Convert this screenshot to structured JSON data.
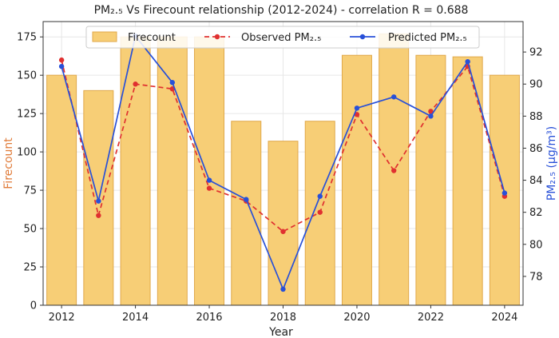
{
  "chart_data": {
    "type": "bar+line",
    "title": "PM₂.₅ Vs Firecount relationship (2012-2024) - correlation R = 0.688",
    "xlabel": "Year",
    "ylabel_left": "Firecount",
    "ylabel_right": "PM₂.₅ (μg/m³)",
    "categories": [
      2012,
      2013,
      2014,
      2015,
      2016,
      2017,
      2018,
      2019,
      2020,
      2021,
      2022,
      2023,
      2024
    ],
    "x_ticks": [
      2012,
      2014,
      2016,
      2018,
      2020,
      2022,
      2024
    ],
    "left_axis": {
      "ylim": [
        0,
        185
      ],
      "ticks": [
        0,
        25,
        50,
        75,
        100,
        125,
        150,
        175
      ]
    },
    "right_axis": {
      "ylim": [
        76.2,
        93.9
      ],
      "ticks": [
        78,
        80,
        82,
        84,
        86,
        88,
        90,
        92
      ]
    },
    "grid": true,
    "legend_position": "top-center",
    "series": [
      {
        "name": "Firecount",
        "kind": "bar",
        "axis": "left",
        "color": "#f7ce76",
        "edge_color": "#e0a84a",
        "values": [
          150,
          140,
          175,
          175,
          175,
          120,
          107,
          120,
          163,
          177,
          163,
          162,
          150
        ]
      },
      {
        "name": "Observed PM₂.₅",
        "kind": "line-dashed",
        "axis": "right",
        "color": "#e03030",
        "values": [
          91.5,
          81.8,
          90.0,
          89.7,
          83.5,
          82.7,
          80.8,
          82.0,
          88.1,
          84.6,
          88.3,
          91.1,
          83.0
        ]
      },
      {
        "name": "Predicted PM₂.₅",
        "kind": "line",
        "axis": "right",
        "color": "#2850d8",
        "values": [
          91.1,
          82.7,
          93.0,
          90.1,
          84.0,
          82.8,
          77.2,
          83.0,
          88.5,
          89.2,
          88.0,
          91.4,
          83.2
        ]
      }
    ],
    "colors": {
      "left_axis_label": "#e07b39",
      "right_axis_label": "#2850d8"
    }
  }
}
